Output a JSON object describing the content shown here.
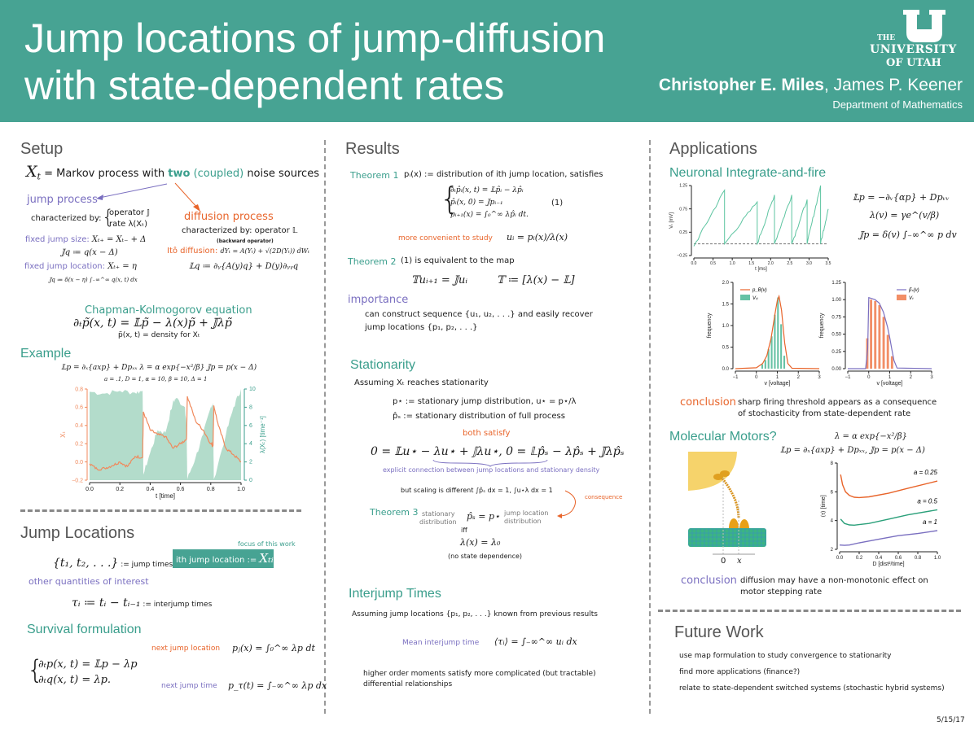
{
  "header": {
    "title_line1": "Jump locations of jump-diffusion",
    "title_line2": "with state-dependent rates",
    "author_main": "Christopher E. Miles",
    "author_other": ", James P. Keener",
    "department": "Department of Mathematics",
    "logo": {
      "the": "THE",
      "university": "UNIVERSITY",
      "of_utah": "OF UTAH"
    },
    "background_color": "#47a393"
  },
  "colors": {
    "teal": "#3a9e8c",
    "purple": "#7a6fc0",
    "orange": "#e8642a"
  },
  "setup": {
    "heading": "Setup",
    "xt": "X",
    "xt_sub": "t",
    "intro_pre": " = Markov process with ",
    "intro_two": "two",
    "intro_coupled": " (coupled)",
    "intro_post": " noise sources",
    "jump_process": "jump process",
    "jump_char_label": "characterized by:",
    "jump_char_op": "operator 𝕁",
    "jump_char_rate": "rate λ(Xₜ)",
    "fixed_size_label": "fixed jump size:",
    "fixed_size_eq": "Xₜ₊ = Xₜ₋ + Δ",
    "fixed_size_op": "𝕁q ≔ q(x − Δ)",
    "fixed_loc_label": "fixed jump location:",
    "fixed_loc_eq": "Xₜ₊ = η",
    "fixed_loc_op": "𝕁q ≔ δ(x − η) ∫₋∞^∞ q(x, t) dx",
    "diffusion_process": "diffusion process",
    "diff_char": "characterized by: operator 𝕃",
    "backward": "(backward operator)",
    "ito_label": "Itô diffusion:",
    "ito_eq": "dYₜ = A(Yₜ) + √(2D(Yₜ)) dWₜ",
    "l_op": "𝕃q ≔ ∂ᵧ{A(y)q} + D(y)∂ᵧᵧq",
    "ck_title": "Chapman-Kolmogorov equation",
    "ck_eq": "∂ₜp̃(x, t) = 𝕃p̃ − λ(x)p̃ + 𝕁λp̃",
    "ck_density": "p̃(x, t) = density for Xₜ"
  },
  "example": {
    "heading": "Example",
    "eq": "𝕃p = ∂ₓ{axp} + Dpₓₓ    λ = α exp{−x²/β}    𝕁p = p(x − Δ)",
    "params": "a = .1, D = 1, α = 10, β = 10, Δ = 1"
  },
  "jump_locations": {
    "heading": "Jump Locations",
    "focus": "focus of this work",
    "jump_times_eq": "{t₁, t₂, . . .}",
    "jump_times_label": " := jump times",
    "box_label": "ith jump location := ",
    "box_eq": "Xₜᵢ",
    "other": "other quantities of interest",
    "tau_eq": "τᵢ ≔ tᵢ − tᵢ₋₁",
    "tau_label": " := interjump times",
    "survival_heading": "Survival formulation",
    "sys1": "∂ₜp(x, t) = 𝕃p − λp",
    "sys2": "∂ₜq(x, t) = λp.",
    "next_loc_label": "next jump location",
    "next_loc_eq": "pⱼ(x) = ∫₀^∞ λp dt",
    "next_time_label": "next jump time",
    "next_time_eq": "p_τ(t) = ∫₋∞^∞ λp dx"
  },
  "results": {
    "heading": "Results",
    "thm1_label": "Theorem 1",
    "thm1_text": "pᵢ(x) := distribution of ith jump location, satisfies",
    "thm1_sys": [
      "∂ₜp̂ᵢ(x, t) = 𝕃p̂ᵢ − λp̂ᵢ",
      "p̂ᵢ(x, 0) = 𝕁pᵢ₋₁",
      "pᵢ₊₁(x) = ∫₀^∞ λp̂ᵢ dt."
    ],
    "eq_number": "(1)",
    "convenient_label": "more convenient to study",
    "convenient_eq": "uᵢ = pᵢ(x)/λ(x)",
    "thm2_label": "Theorem 2",
    "thm2_text": "(1) is equivalent to the map",
    "thm2_eq1": "𝕋uᵢ₊₁ = 𝕁uᵢ",
    "thm2_eq2": "𝕋 ≔ [λ(x) − 𝕃]",
    "importance": "importance",
    "importance_l1": "can construct sequence {u₁, u₂, . . .} and easily recover",
    "importance_l2": "jump locations {p₁, p₂, . . .}"
  },
  "stationarity": {
    "heading": "Stationarity",
    "assume": "Assuming Xₜ reaches stationarity",
    "pstar": "p⋆ := stationary jump distribution, u⋆ = p⋆/λ",
    "ps": "p̂ₛ := stationary distribution of full process",
    "both": "both satisfy",
    "eqs": "0 = 𝕃u⋆ − λu⋆ + 𝕁λu⋆,     0 = 𝕃p̂ₛ − λp̂ₛ + 𝕁λp̂ₛ",
    "explicit": "explicit connection between jump locations and stationary density",
    "scaling": "but scaling is different  ∫p̂ₛ dx = 1,  ∫u⋆λ dx = 1",
    "consequence": "consequence",
    "thm3_label": "Theorem 3",
    "stat_dist_1": "stationary",
    "stat_dist_2": "distribution",
    "thm3_eq": "p̂ₛ = p⋆",
    "jump_dist_1": "jump location",
    "jump_dist_2": "distribution",
    "iff": "iff",
    "lambda_eq": "λ(x) = λ₀",
    "no_state": "(no state dependence)"
  },
  "interjump": {
    "heading": "Interjump Times",
    "assume": "Assuming jump locations {p₁, p₂, . . .} known from previous results",
    "mean_label": "Mean interjump time",
    "mean_eq": "⟨τᵢ⟩ = ∫₋∞^∞ uᵢ dx",
    "higher_l1": "higher order moments satisfy more complicated (but tractable)",
    "higher_l2": "differential relationships"
  },
  "applications": {
    "heading": "Applications",
    "neuronal_heading": "Neuronal Integrate-and-fire",
    "neuronal_eqs": [
      "𝕃p = −∂ᵥ{αp} + Dpᵥᵥ",
      "λ(v) = γe^(v/β)",
      "𝕁p = δ(v) ∫₋∞^∞ p dv"
    ],
    "conclusion_label": "conclusion",
    "conclusion_l1": "sharp firing threshold appears as a consequence",
    "conclusion_l2": "of stochasticity from state-dependent rate",
    "motors_heading": "Molecular Motors?",
    "motors_eq1": "λ = α exp{−x²/β}",
    "motors_eq2": "𝕃p = ∂ₓ{axp} + Dpₓₓ,  𝕁p = p(x − Δ)",
    "motor_axis_0": "0",
    "motor_axis_x": "x",
    "conclusion2_label": "conclusion",
    "conclusion2_l1": "diffusion may have a non-monotonic effect on",
    "conclusion2_l2": "motor stepping rate"
  },
  "future": {
    "heading": "Future Work",
    "items": [
      "use map formulation to study convergence to stationarity",
      "find more applications (finance?)",
      "relate to state-dependent switched systems (stochastic hybrid systems)"
    ]
  },
  "date": "5/15/17",
  "chart_data": [
    {
      "type": "line",
      "xlabel": "t [time]",
      "ylabel": "Xₜ",
      "ylabel_right": "λ(Xₜ) [time⁻¹]",
      "xlim": [
        0,
        1
      ],
      "ylim": [
        -0.2,
        0.8
      ],
      "ylim_right": [
        0,
        10
      ],
      "xticks": [
        "0.0",
        "0.2",
        "0.4",
        "0.6",
        "0.8",
        "1.0"
      ],
      "yticks": [
        "−0.2",
        "0.0",
        "0.2",
        "0.4",
        "0.6",
        "0.8"
      ],
      "yticks_right": [
        "0",
        "2",
        "4",
        "6",
        "8",
        "10"
      ],
      "series": [
        {
          "axis": "left",
          "color": "#f08a5d",
          "x": [
            0,
            0.05,
            0.1,
            0.15,
            0.2,
            0.25,
            0.3,
            0.35,
            0.355,
            0.4,
            0.45,
            0.5,
            0.55,
            0.6,
            0.64,
            0.645,
            0.7,
            0.75,
            0.8,
            0.815,
            0.82,
            0.85,
            0.9,
            0.95,
            1.0
          ],
          "y": [
            -0.02,
            -0.08,
            -0.07,
            -0.04,
            0.0,
            -0.05,
            0.06,
            0.05,
            0.55,
            0.35,
            0.3,
            0.28,
            0.15,
            0.2,
            0.25,
            0.72,
            0.45,
            0.35,
            0.2,
            0.18,
            0.62,
            0.4,
            0.15,
            0.08,
            0.0
          ]
        },
        {
          "axis": "right",
          "type": "area",
          "color": "#b3dccb",
          "x": [
            0,
            0.1,
            0.2,
            0.3,
            0.35,
            0.355,
            0.4,
            0.45,
            0.5,
            0.55,
            0.57,
            0.63,
            0.64,
            0.645,
            0.7,
            0.75,
            0.8,
            0.815,
            0.82,
            0.9,
            0.95,
            1.0
          ],
          "y": [
            9.7,
            9.5,
            9.8,
            9.6,
            9.8,
            0.6,
            3,
            5.5,
            5.2,
            8.5,
            9,
            8,
            6,
            0.1,
            2.5,
            5,
            8,
            8.5,
            0.1,
            5,
            8,
            10
          ]
        }
      ]
    },
    {
      "type": "line",
      "xlabel": "t [ms]",
      "ylabel": "Vₜ [mV]",
      "xlim": [
        0,
        3.5
      ],
      "ylim": [
        -0.25,
        1.25
      ],
      "xticks": [
        "0.0",
        "0.5",
        "1.0",
        "1.5",
        "2.0",
        "2.5",
        "3.0",
        "3.5"
      ],
      "yticks": [
        "−0.25",
        "0.25",
        "0.75",
        "1.25"
      ],
      "threshold": 0,
      "series": [
        {
          "color": "#5cc4a0",
          "x": [
            0,
            0.8,
            0.8,
            1.65,
            1.65,
            2.1,
            2.1,
            2.55,
            2.55,
            2.95,
            2.95,
            3.3,
            3.3,
            3.5
          ],
          "y": [
            -0.05,
            1.15,
            0,
            0.9,
            0,
            1.05,
            0,
            1.05,
            0,
            0.95,
            0,
            1.25,
            0,
            0.75
          ]
        }
      ]
    },
    {
      "type": "bar",
      "xlabel": "v [voltage]",
      "ylabel": "frequency",
      "xlim": [
        -1,
        3
      ],
      "ylim": [
        0,
        2
      ],
      "xticks": [
        "−1",
        "0",
        "1",
        "2",
        "3"
      ],
      "yticks": [
        "0.0",
        "0.5",
        "1.0",
        "1.5",
        "2.0"
      ],
      "legend": [
        "p_B(v)",
        "Vₜᵢ"
      ],
      "legend_position": "top-left",
      "bars": {
        "color": "#66c2a5",
        "x": [
          0.3,
          0.45,
          0.6,
          0.75,
          0.9,
          1.05,
          1.2,
          1.35
        ],
        "y": [
          0.1,
          0.2,
          0.45,
          0.75,
          1.25,
          1.65,
          1.03,
          0.3
        ],
        "width": 0.12
      },
      "curve": {
        "color": "#e8642a",
        "x": [
          -1,
          0,
          0.3,
          0.5,
          0.7,
          0.9,
          1.0,
          1.08,
          1.2,
          1.35,
          1.5,
          1.7,
          3
        ],
        "y": [
          0,
          0.02,
          0.12,
          0.3,
          0.7,
          1.3,
          1.58,
          1.68,
          1.35,
          0.6,
          0.12,
          0.01,
          0
        ]
      }
    },
    {
      "type": "bar",
      "xlabel": "v [voltage]",
      "ylabel": "frequency",
      "xlim": [
        -1,
        3
      ],
      "ylim": [
        0,
        1.25
      ],
      "xticks": [
        "−1",
        "0",
        "1",
        "2",
        "3"
      ],
      "yticks": [
        "0.00",
        "0.25",
        "0.50",
        "0.75",
        "1.00",
        "1.25"
      ],
      "legend": [
        "p̃ₛ(v)",
        "Vₜ"
      ],
      "legend_position": "top-right",
      "bars": {
        "color": "#f28e66",
        "x": [
          -0.05,
          0.13,
          0.33,
          0.53,
          0.73,
          0.93,
          1.13
        ],
        "y": [
          0.44,
          1.0,
          0.98,
          0.92,
          0.75,
          0.49,
          0.18
        ],
        "width": 0.15
      },
      "curve": {
        "color": "#7a6fc0",
        "x": [
          -1,
          -0.15,
          -0.05,
          0,
          0.3,
          0.5,
          0.7,
          0.9,
          1.0,
          1.1,
          1.2,
          1.35,
          3
        ],
        "y": [
          0,
          0,
          0.3,
          1.03,
          1.0,
          0.95,
          0.82,
          0.6,
          0.45,
          0.28,
          0.12,
          0.01,
          0
        ]
      }
    },
    {
      "type": "line",
      "xlabel": "D [dist²/time]",
      "ylabel": "⟨τ⟩ [time]",
      "xlim": [
        0,
        1
      ],
      "ylim": [
        2,
        8
      ],
      "xticks": [
        "0.0",
        "0.2",
        "0.4",
        "0.6",
        "0.8",
        "1.0"
      ],
      "yticks": [
        "2",
        "4",
        "6",
        "8"
      ],
      "series": [
        {
          "name": "a = 0.25",
          "color": "#e8642a",
          "x": [
            0.01,
            0.03,
            0.06,
            0.1,
            0.15,
            0.2,
            0.3,
            0.5,
            0.7,
            1.0
          ],
          "y": [
            7.2,
            6.5,
            6.0,
            5.75,
            5.62,
            5.6,
            5.65,
            5.9,
            6.25,
            6.75
          ]
        },
        {
          "name": "a = 0.5",
          "color": "#2ba07a",
          "x": [
            0.01,
            0.05,
            0.1,
            0.15,
            0.2,
            0.3,
            0.5,
            0.7,
            1.0
          ],
          "y": [
            4.1,
            3.8,
            3.7,
            3.68,
            3.72,
            3.8,
            4.1,
            4.4,
            4.75
          ]
        },
        {
          "name": "a = 1",
          "color": "#7a6fc0",
          "x": [
            0,
            0.05,
            0.1,
            0.2,
            0.4,
            0.6,
            0.8,
            1.0
          ],
          "y": [
            2.3,
            2.28,
            2.3,
            2.45,
            2.7,
            2.95,
            3.1,
            3.3
          ]
        }
      ]
    }
  ]
}
